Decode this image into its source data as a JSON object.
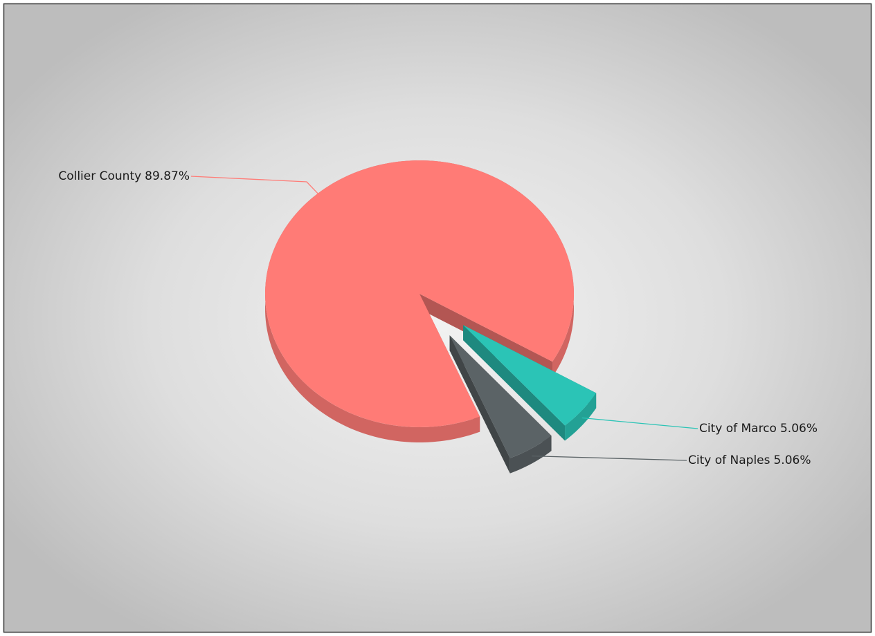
{
  "chart_data": {
    "type": "pie",
    "categories": [
      "Collier County",
      "City of Marco",
      "City of Naples"
    ],
    "values": [
      89.87,
      5.06,
      5.06
    ],
    "value_labels": [
      "89.87%",
      "5.06%",
      "5.06%"
    ],
    "colors": [
      "#ff7b76",
      "#2bc4b6",
      "#5b6366"
    ],
    "explode": [
      false,
      true,
      true
    ]
  }
}
